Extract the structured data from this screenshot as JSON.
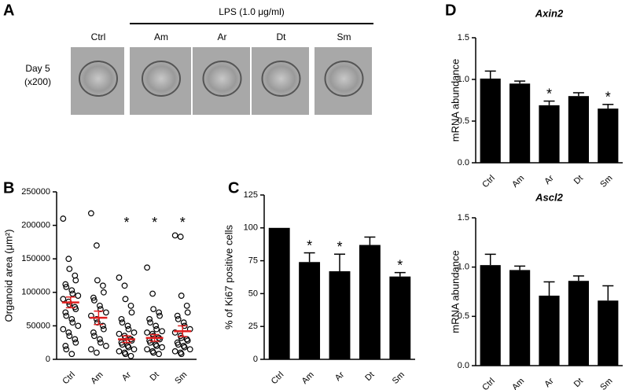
{
  "image_panel": {
    "panel": "A",
    "treatment": "LPS (1.0 μg/ml)",
    "row_label": [
      "Day 5",
      "(x200)"
    ],
    "columns": [
      "Ctrl",
      "Am",
      "Ar",
      "Dt",
      "Sm"
    ]
  },
  "chart_data": [
    {
      "panel": "B",
      "type": "dot",
      "y_label": "Organoid area (μm²)",
      "categories": [
        "Ctrl",
        "Am",
        "Ar",
        "Dt",
        "Sm"
      ],
      "points": [
        [
          210000,
          150000,
          135000,
          125000,
          118000,
          112000,
          108000,
          103000,
          98000,
          95000,
          90000,
          86000,
          82000,
          78000,
          75000,
          70000,
          65000,
          60000,
          55000,
          50000,
          45000,
          40000,
          35000,
          30000,
          25000,
          20000,
          15000,
          8000
        ],
        [
          218000,
          170000,
          118000,
          110000,
          100000,
          92000,
          88000,
          80000,
          75000,
          70000,
          65000,
          60000,
          55000,
          50000,
          45000,
          40000,
          35000,
          30000,
          25000,
          20000,
          15000,
          10000
        ],
        [
          122000,
          110000,
          90000,
          80000,
          70000,
          60000,
          55000,
          50000,
          45000,
          40000,
          38000,
          35000,
          32000,
          30000,
          28000,
          25000,
          22000,
          20000,
          18000,
          15000,
          12000,
          10000,
          8000,
          5000
        ],
        [
          137000,
          98000,
          75000,
          70000,
          65000,
          60000,
          55000,
          50000,
          45000,
          42000,
          40000,
          38000,
          35000,
          32000,
          30000,
          28000,
          25000,
          22000,
          20000,
          18000,
          15000,
          12000,
          10000,
          8000
        ],
        [
          185000,
          183000,
          95000,
          80000,
          70000,
          65000,
          60000,
          55000,
          50000,
          45000,
          40000,
          35000,
          32000,
          30000,
          28000,
          25000,
          22000,
          20000,
          18000,
          15000,
          12000,
          10000,
          8000
        ]
      ],
      "means": [
        85000,
        62000,
        30000,
        32000,
        42000
      ],
      "errors": [
        8000,
        10000,
        5000,
        5000,
        8000
      ],
      "significance": [
        null,
        null,
        "*",
        "*",
        "*"
      ],
      "color": "#000000",
      "mean_color": "#e02020",
      "ylim": [
        0,
        250000
      ],
      "yticks": [
        0,
        50000,
        100000,
        150000,
        200000,
        250000
      ]
    },
    {
      "panel": "C",
      "type": "bar",
      "y_label": "% of Ki67 positive cells",
      "categories": [
        "Ctrl",
        "Am",
        "Ar",
        "Dt",
        "Sm"
      ],
      "values": [
        100,
        74,
        67,
        87,
        63
      ],
      "errors": [
        0,
        7,
        13,
        6,
        3
      ],
      "significance": [
        null,
        "*",
        "*",
        null,
        "*"
      ],
      "color": "#000000",
      "ylim": [
        0,
        125
      ],
      "yticks": [
        0,
        25,
        50,
        75,
        100,
        125
      ]
    },
    {
      "panel": "D",
      "type": "bar",
      "title": "Axin2",
      "y_label": "mRNA abundance",
      "categories": [
        "Ctrl",
        "Am",
        "Ar",
        "Dt",
        "Sm"
      ],
      "values": [
        1.01,
        0.95,
        0.69,
        0.8,
        0.65
      ],
      "errors": [
        0.09,
        0.03,
        0.05,
        0.04,
        0.05
      ],
      "significance": [
        null,
        null,
        "*",
        null,
        "*"
      ],
      "color": "#000000",
      "ylim": [
        0,
        1.5
      ],
      "yticks": [
        {
          "value": 0,
          "label": "0.0"
        },
        0.5,
        {
          "value": 1,
          "label": "1.0"
        },
        1.5
      ]
    },
    {
      "type": "bar",
      "title": "Ascl2",
      "y_label": "mRNA abundance",
      "categories": [
        "Ctrl",
        "Am",
        "Ar",
        "Dt",
        "Sm"
      ],
      "values": [
        1.02,
        0.97,
        0.71,
        0.86,
        0.66
      ],
      "errors": [
        0.11,
        0.04,
        0.14,
        0.05,
        0.15
      ],
      "color": "#000000",
      "ylim": [
        0,
        1.5
      ],
      "yticks": [
        {
          "value": 0,
          "label": "0.0"
        },
        0.5,
        {
          "value": 1,
          "label": "1.0"
        },
        1.5
      ]
    }
  ]
}
